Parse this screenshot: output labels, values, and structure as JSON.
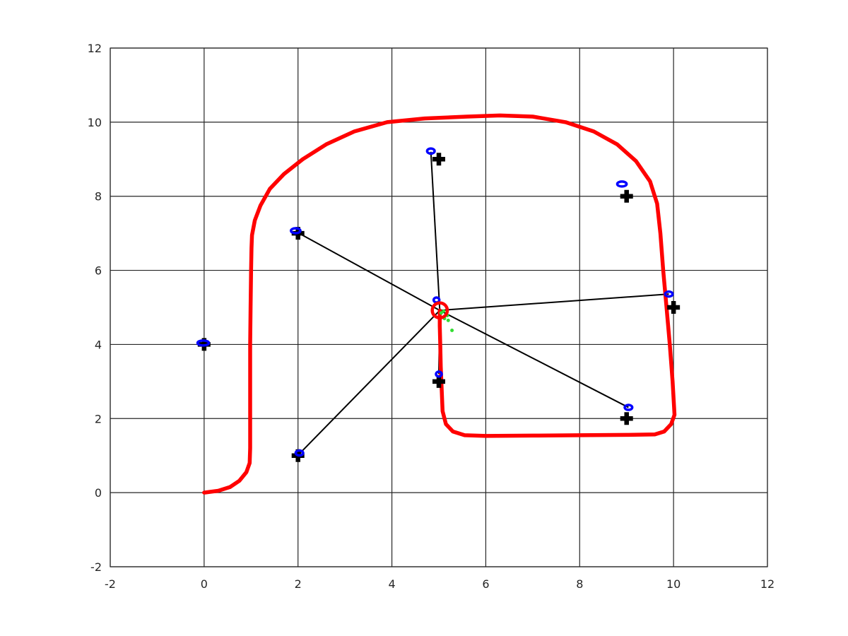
{
  "chart_data": {
    "type": "scatter",
    "title": "",
    "xlabel": "",
    "ylabel": "",
    "xlim": [
      -2,
      12
    ],
    "ylim": [
      -2,
      12
    ],
    "xticks": [
      -2,
      0,
      2,
      4,
      6,
      8,
      10,
      12
    ],
    "yticks": [
      -2,
      0,
      2,
      4,
      6,
      8,
      10,
      12
    ],
    "xtick_labels": [
      "-2",
      "0",
      "2",
      "4",
      "6",
      "8",
      "10",
      "12"
    ],
    "ytick_labels": [
      "-2",
      "0",
      "2",
      "4",
      "6",
      "8",
      "10",
      "12"
    ],
    "grid": true,
    "colors": {
      "trajectory": "#ff0000",
      "landmark_true": "#000000",
      "landmark_estimate": "#0000ff",
      "observation_line": "#000000",
      "particles": "#33dd33",
      "robot": "#ff0000",
      "grid": "#262626"
    },
    "trajectory": [
      [
        0.0,
        0.0
      ],
      [
        0.3,
        0.05
      ],
      [
        0.55,
        0.15
      ],
      [
        0.75,
        0.32
      ],
      [
        0.9,
        0.55
      ],
      [
        0.97,
        0.8
      ],
      [
        0.98,
        1.2
      ],
      [
        0.98,
        2.0
      ],
      [
        0.98,
        3.0
      ],
      [
        0.98,
        4.0
      ],
      [
        0.99,
        5.0
      ],
      [
        1.0,
        6.0
      ],
      [
        1.01,
        6.6
      ],
      [
        1.02,
        6.95
      ],
      [
        1.08,
        7.35
      ],
      [
        1.2,
        7.75
      ],
      [
        1.4,
        8.2
      ],
      [
        1.7,
        8.6
      ],
      [
        2.1,
        9.0
      ],
      [
        2.6,
        9.4
      ],
      [
        3.2,
        9.75
      ],
      [
        3.9,
        10.0
      ],
      [
        4.7,
        10.1
      ],
      [
        5.6,
        10.15
      ],
      [
        6.3,
        10.18
      ],
      [
        7.0,
        10.15
      ],
      [
        7.7,
        10.0
      ],
      [
        8.3,
        9.75
      ],
      [
        8.8,
        9.4
      ],
      [
        9.2,
        8.95
      ],
      [
        9.5,
        8.4
      ],
      [
        9.65,
        7.8
      ],
      [
        9.72,
        7.0
      ],
      [
        9.78,
        6.0
      ],
      [
        9.85,
        5.0
      ],
      [
        9.92,
        4.0
      ],
      [
        9.98,
        3.0
      ],
      [
        10.02,
        2.1
      ],
      [
        9.95,
        1.85
      ],
      [
        9.8,
        1.65
      ],
      [
        9.6,
        1.57
      ],
      [
        9.0,
        1.56
      ],
      [
        8.0,
        1.55
      ],
      [
        7.0,
        1.54
      ],
      [
        6.0,
        1.53
      ],
      [
        5.55,
        1.55
      ],
      [
        5.3,
        1.65
      ],
      [
        5.15,
        1.85
      ],
      [
        5.08,
        2.2
      ],
      [
        5.06,
        2.8
      ],
      [
        5.04,
        3.4
      ],
      [
        5.03,
        4.0
      ],
      [
        5.02,
        4.5
      ],
      [
        5.02,
        4.92
      ]
    ],
    "landmarks_true": [
      {
        "x": 0,
        "y": 4
      },
      {
        "x": 2,
        "y": 7
      },
      {
        "x": 2,
        "y": 1
      },
      {
        "x": 5,
        "y": 9
      },
      {
        "x": 5,
        "y": 3
      },
      {
        "x": 9,
        "y": 8
      },
      {
        "x": 10,
        "y": 5
      },
      {
        "x": 9,
        "y": 2
      }
    ],
    "landmarks_estimated": [
      {
        "x": -0.02,
        "y": 4.04,
        "rx": 0.12,
        "ry": 0.05
      },
      {
        "x": 1.95,
        "y": 7.07,
        "rx": 0.1,
        "ry": 0.06
      },
      {
        "x": 2.03,
        "y": 1.07,
        "rx": 0.08,
        "ry": 0.06
      },
      {
        "x": 4.83,
        "y": 9.22,
        "rx": 0.08,
        "ry": 0.07
      },
      {
        "x": 5.0,
        "y": 3.2,
        "rx": 0.05,
        "ry": 0.06
      },
      {
        "x": 8.9,
        "y": 8.33,
        "rx": 0.1,
        "ry": 0.06
      },
      {
        "x": 9.9,
        "y": 5.36,
        "rx": 0.08,
        "ry": 0.05
      },
      {
        "x": 9.04,
        "y": 2.3,
        "rx": 0.08,
        "ry": 0.06
      },
      {
        "x": 4.95,
        "y": 5.2,
        "rx": 0.06,
        "ry": 0.06
      }
    ],
    "robot": {
      "x": 5.02,
      "y": 4.92,
      "radius": 0.16
    },
    "observations": [
      {
        "x": 1.95,
        "y": 7.05
      },
      {
        "x": 2.03,
        "y": 1.05
      },
      {
        "x": 4.83,
        "y": 9.2
      },
      {
        "x": 5.0,
        "y": 3.2
      },
      {
        "x": 9.9,
        "y": 5.36
      },
      {
        "x": 9.04,
        "y": 2.3
      }
    ],
    "particles": [
      {
        "x": 5.12,
        "y": 4.7
      },
      {
        "x": 5.18,
        "y": 4.78
      },
      {
        "x": 5.05,
        "y": 4.85
      },
      {
        "x": 5.2,
        "y": 4.65
      },
      {
        "x": 5.28,
        "y": 4.38
      },
      {
        "x": 5.1,
        "y": 4.9
      }
    ]
  }
}
